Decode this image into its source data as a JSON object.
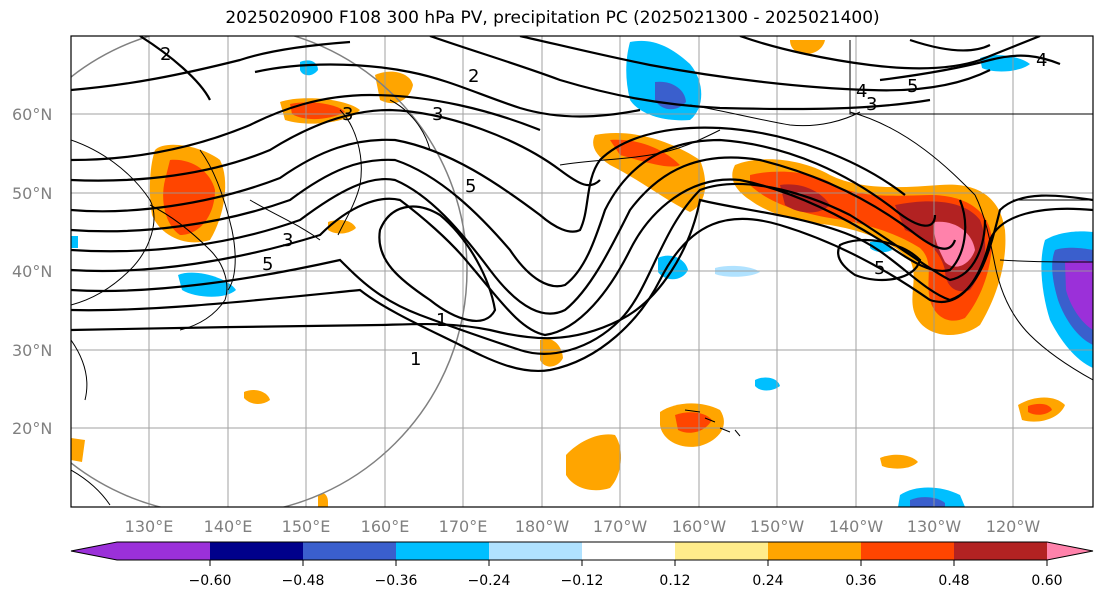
{
  "title": "2025020900 F108 300 hPa PV, precipitation PC (2025021300 - 2025021400)",
  "lat_labels": [
    "60°N",
    "50°N",
    "40°N",
    "30°N",
    "20°N"
  ],
  "lon_labels": [
    "130°E",
    "140°E",
    "150°E",
    "160°E",
    "170°E",
    "180°W",
    "170°W",
    "160°W",
    "150°W",
    "140°W",
    "130°W",
    "120°W"
  ],
  "contour_labels": [
    {
      "text": "2"
    },
    {
      "text": "2"
    },
    {
      "text": "3"
    },
    {
      "text": "3"
    },
    {
      "text": "5"
    },
    {
      "text": "5"
    },
    {
      "text": "5"
    },
    {
      "text": "5"
    },
    {
      "text": "4"
    },
    {
      "text": "3"
    },
    {
      "text": "1"
    },
    {
      "text": "1"
    },
    {
      "text": "3"
    },
    {
      "text": "4"
    }
  ],
  "colorbar": {
    "colors": [
      "#9b30d9",
      "#00008b",
      "#3a5fcd",
      "#00bfff",
      "#b0e2ff",
      "#ffffff",
      "#ffec8b",
      "#ffa500",
      "#ff4500",
      "#b22222",
      "#ff82ab"
    ],
    "tick_labels": [
      "−0.60",
      "−0.48",
      "−0.36",
      "−0.24",
      "−0.12",
      "0.12",
      "0.24",
      "0.36",
      "0.48",
      "0.60"
    ]
  }
}
